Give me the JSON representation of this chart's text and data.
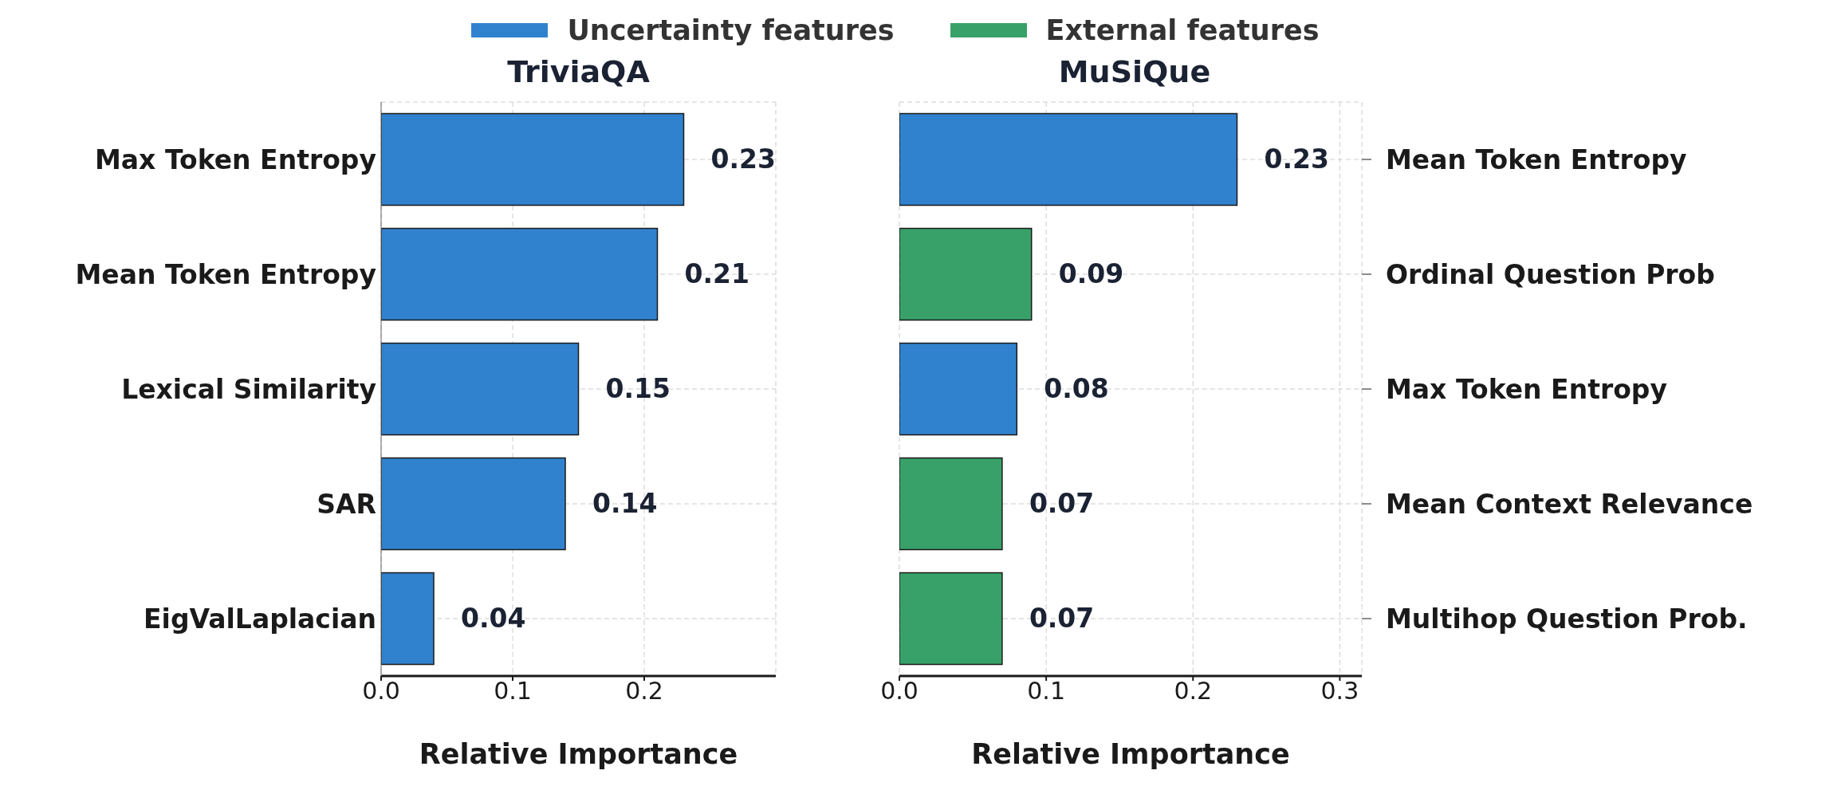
{
  "chart_data": [
    {
      "type": "bar",
      "orientation": "horizontal",
      "stacked": true,
      "title": "TriviaQA",
      "xlabel": "Relative Importance",
      "categories": [
        "Max Token Entropy",
        "Mean Token Entropy",
        "Lexical Similarity",
        "SAR",
        "EigValLaplacian"
      ],
      "series": [
        {
          "name": "Uncertainty features",
          "color": "#3182ce",
          "values": [
            0.23,
            0.21,
            0.15,
            0.14,
            0.04
          ]
        },
        {
          "name": "External features",
          "color": "#38a169",
          "values": [
            null,
            null,
            null,
            null,
            null
          ]
        }
      ],
      "xlim": [
        0,
        0.3
      ],
      "xticks": [
        {
          "value": 0,
          "label": "0.0"
        },
        0.1,
        0.2
      ],
      "grid": true,
      "legend": "top",
      "data_labels": true
    },
    {
      "type": "bar",
      "orientation": "horizontal",
      "stacked": true,
      "title": "MuSiQue",
      "xlabel": "Relative Importance",
      "categories": [
        "Mean Token Entropy",
        "Ordinal Question Prob",
        "Max Token Entropy",
        "Mean Context Relevance",
        "Multihop Question Prob."
      ],
      "series": [
        {
          "color": "#3182ce",
          "values": [
            0.23,
            null,
            0.08,
            null,
            null
          ]
        },
        {
          "color": "#38a169",
          "values": [
            null,
            0.09,
            null,
            0.07,
            0.07
          ]
        }
      ],
      "xlim": [
        0,
        0.315
      ],
      "xticks": [
        {
          "value": 0,
          "label": "0.0"
        },
        0.1,
        0.2,
        0.3
      ],
      "grid": true,
      "data_labels": true
    }
  ]
}
